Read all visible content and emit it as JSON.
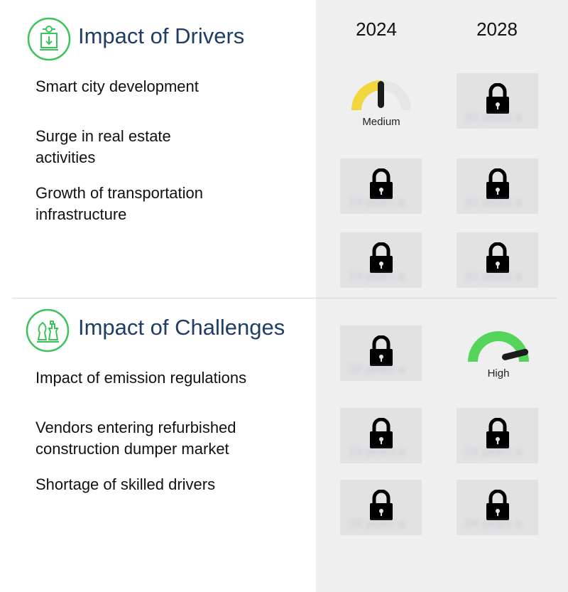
{
  "years": [
    "2024",
    "2028"
  ],
  "drivers": {
    "title": "Impact of Drivers",
    "icon": "gear-box-icon",
    "items": [
      "Smart city development",
      "Surge in real estate activities",
      "Growth of transportation infrastructure"
    ],
    "ratings": {
      "2024": [
        "Medium",
        "locked",
        "locked"
      ],
      "2028": [
        "locked",
        "locked",
        "locked"
      ]
    }
  },
  "challenges": {
    "title": "Impact of Challenges",
    "icon": "chess-pieces-icon",
    "items": [
      "Impact of emission regulations",
      "Vendors entering refurbished construction dumper market",
      "Shortage of skilled drivers"
    ],
    "ratings": {
      "2024": [
        "locked",
        "locked",
        "locked"
      ],
      "2028": [
        "High",
        "locked",
        "locked"
      ]
    }
  },
  "colors": {
    "title": "#1f3d66",
    "icon_green": "#3cc35a",
    "medium": "#f1d63e",
    "high": "#54d45a",
    "gauge_track": "#e6e6e6"
  },
  "gauges": {
    "medium_label": "Medium",
    "high_label": "High"
  }
}
